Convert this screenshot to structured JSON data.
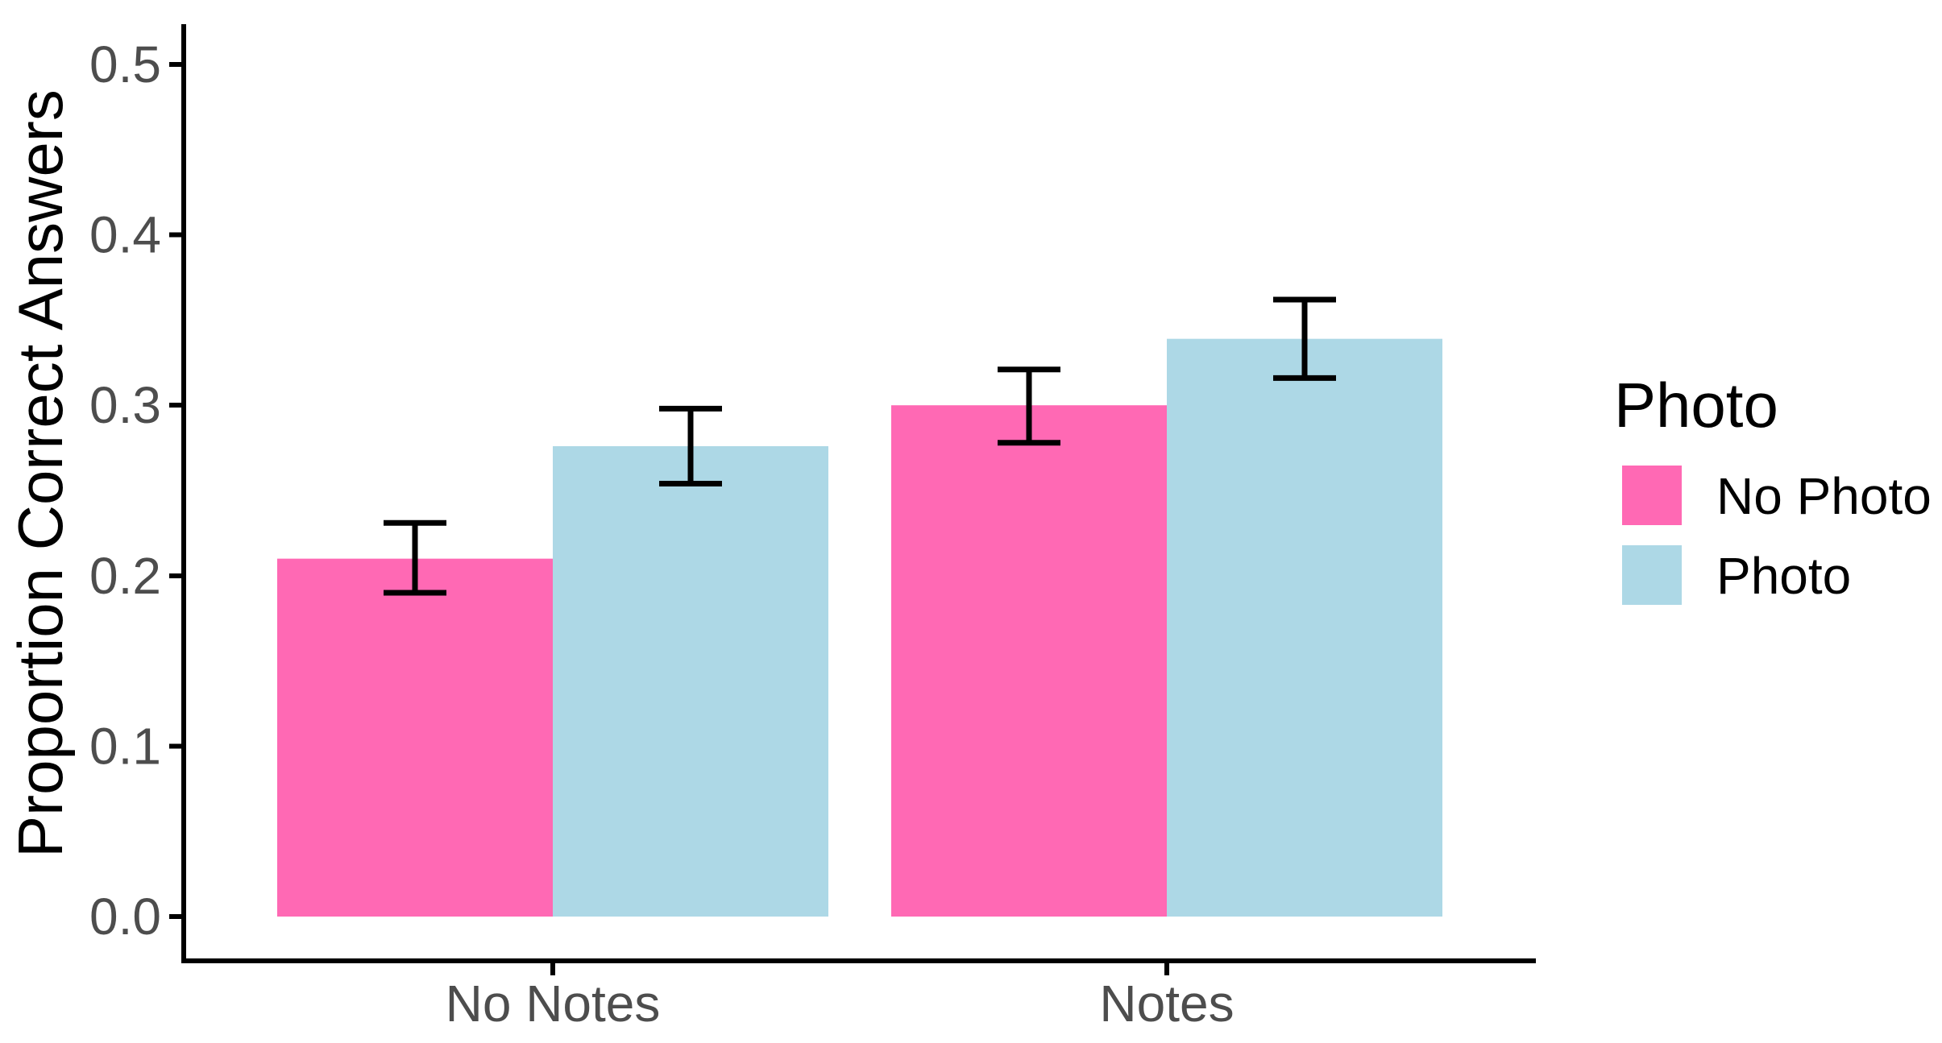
{
  "chart_data": {
    "type": "bar",
    "title": "",
    "xlabel": "",
    "ylabel": "Proportion Correct Answers",
    "categories": [
      "No Notes",
      "Notes"
    ],
    "series": [
      {
        "name": "No Photo",
        "color": "#FF69B4",
        "values": [
          0.21,
          0.3
        ],
        "ci_low": [
          0.19,
          0.278
        ],
        "ci_high": [
          0.231,
          0.321
        ]
      },
      {
        "name": "Photo",
        "color": "#ADD8E6",
        "values": [
          0.276,
          0.339
        ],
        "ci_low": [
          0.254,
          0.316
        ],
        "ci_high": [
          0.298,
          0.362
        ]
      }
    ],
    "yticks": [
      "0.0",
      "0.1",
      "0.2",
      "0.3",
      "0.4",
      "0.5"
    ],
    "ylim": [
      0,
      0.52
    ],
    "grid": false,
    "error_bars": true,
    "legend": {
      "title": "Photo",
      "position": "right"
    },
    "colors": {
      "axis": "#000000",
      "tick_label": "#4D4D4D",
      "error_bar": "#000000",
      "background": "#FFFFFF",
      "legend_text": "#000000"
    }
  }
}
